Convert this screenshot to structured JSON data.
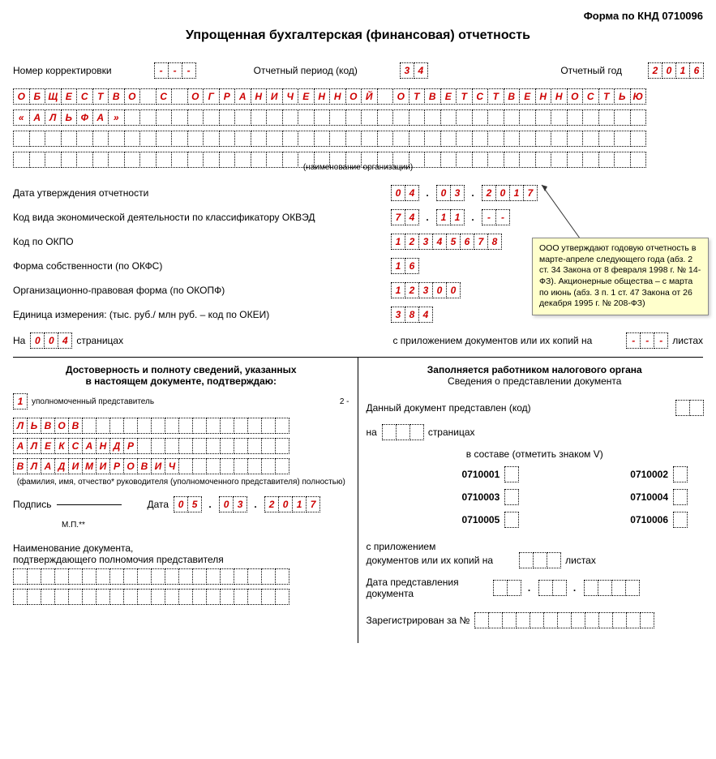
{
  "form_code": "Форма по КНД 0710096",
  "title": "Упрощенная бухгалтерская (финансовая) отчетность",
  "correction_label": "Номер корректировки",
  "correction_value": [
    "-",
    "-",
    "-"
  ],
  "period_label": "Отчетный период (код)",
  "period_value": [
    "3",
    "4"
  ],
  "year_label": "Отчетный год",
  "year_value": [
    "2",
    "0",
    "1",
    "6"
  ],
  "org_name_rows": [
    [
      "О",
      "Б",
      "Щ",
      "Е",
      "С",
      "Т",
      "В",
      "О",
      "",
      "С",
      "",
      "О",
      "Г",
      "Р",
      "А",
      "Н",
      "И",
      "Ч",
      "Е",
      "Н",
      "Н",
      "О",
      "Й",
      "",
      "О",
      "Т",
      "В",
      "Е",
      "Т",
      "С",
      "Т",
      "В",
      "Е",
      "Н",
      "Н",
      "О",
      "С",
      "Т",
      "Ь",
      "Ю"
    ],
    [
      "«",
      "А",
      "Л",
      "Ь",
      "Ф",
      "А",
      "»",
      "",
      "",
      "",
      "",
      "",
      "",
      "",
      "",
      "",
      "",
      "",
      "",
      "",
      "",
      "",
      "",
      "",
      "",
      "",
      "",
      "",
      "",
      "",
      "",
      "",
      "",
      "",
      "",
      "",
      "",
      "",
      "",
      ""
    ],
    [
      "",
      "",
      "",
      "",
      "",
      "",
      "",
      "",
      "",
      "",
      "",
      "",
      "",
      "",
      "",
      "",
      "",
      "",
      "",
      "",
      "",
      "",
      "",
      "",
      "",
      "",
      "",
      "",
      "",
      "",
      "",
      "",
      "",
      "",
      "",
      "",
      "",
      "",
      "",
      ""
    ],
    [
      "",
      "",
      "",
      "",
      "",
      "",
      "",
      "",
      "",
      "",
      "",
      "",
      "",
      "",
      "",
      "",
      "",
      "",
      "",
      "",
      "",
      "",
      "",
      "",
      "",
      "",
      "",
      "",
      "",
      "",
      "",
      "",
      "",
      "",
      "",
      "",
      "",
      "",
      "",
      ""
    ]
  ],
  "org_caption": "(наименование организации)",
  "approval_date_label": "Дата утверждения отчетности",
  "approval_date": {
    "d": [
      "0",
      "4"
    ],
    "m": [
      "0",
      "3"
    ],
    "y": [
      "2",
      "0",
      "1",
      "7"
    ]
  },
  "okved_label": "Код вида экономической деятельности по классификатору ОКВЭД",
  "okved": {
    "a": [
      "7",
      "4"
    ],
    "b": [
      "1",
      "1"
    ],
    "c": [
      "-",
      "-"
    ]
  },
  "okpo_label": "Код по ОКПО",
  "okpo": [
    "1",
    "2",
    "3",
    "4",
    "5",
    "6",
    "7",
    "8"
  ],
  "okfs_label": "Форма собственности (по ОКФС)",
  "okfs": [
    "1",
    "6"
  ],
  "okopf_label": "Организационно-правовая форма (по ОКОПФ)",
  "okopf": [
    "1",
    "2",
    "3",
    "0",
    "0"
  ],
  "okei_label": "Единица измерения: (тыс. руб./ млн руб. – код по ОКЕИ)",
  "okei": [
    "3",
    "8",
    "4"
  ],
  "tooltip_text": "ООО утверждают годовую отчетность в марте-апреле следующего года (абз. 2 ст. 34 Закона от 8 февраля 1998 г. № 14-ФЗ). Акционерные общества – с марта по июнь (абз. 3 п. 1 ст. 47 Закона от 26 декабря 1995 г. № 208-ФЗ)",
  "pages_prefix": "На",
  "pages_value": [
    "0",
    "0",
    "4"
  ],
  "pages_suffix": "страницах",
  "attach_label": "с приложением документов или их копий на",
  "attach_value": [
    "-",
    "-",
    "-"
  ],
  "attach_suffix": "листах",
  "left_title1": "Достоверность и полноту сведений, указанных",
  "left_title2": "в настоящем документе, подтверждаю:",
  "rep_code": [
    "1"
  ],
  "rep_label": "уполномоченный представитель",
  "rep_label_num": "2 -",
  "name_rows": [
    [
      "Л",
      "Ь",
      "В",
      "О",
      "В",
      "",
      "",
      "",
      "",
      "",
      "",
      "",
      "",
      "",
      "",
      "",
      "",
      "",
      "",
      ""
    ],
    [
      "А",
      "Л",
      "Е",
      "К",
      "С",
      "А",
      "Н",
      "Д",
      "Р",
      "",
      "",
      "",
      "",
      "",
      "",
      "",
      "",
      "",
      "",
      ""
    ],
    [
      "В",
      "Л",
      "А",
      "Д",
      "И",
      "М",
      "И",
      "Р",
      "О",
      "В",
      "И",
      "Ч",
      "",
      "",
      "",
      "",
      "",
      "",
      "",
      ""
    ]
  ],
  "fio_caption": "(фамилия, имя, отчество* руководителя (уполномоченного представителя) полностью)",
  "sign_label": "Подпись",
  "mp_label": "М.П.**",
  "date_label": "Дата",
  "sign_date": {
    "d": [
      "0",
      "5"
    ],
    "m": [
      "0",
      "3"
    ],
    "y": [
      "2",
      "0",
      "1",
      "7"
    ]
  },
  "doc_name_label1": "Наименование документа,",
  "doc_name_label2": "подтверждающего полномочия представителя",
  "doc_name_rows": [
    [
      "",
      "",
      "",
      "",
      "",
      "",
      "",
      "",
      "",
      "",
      "",
      "",
      "",
      "",
      "",
      "",
      "",
      "",
      "",
      ""
    ],
    [
      "",
      "",
      "",
      "",
      "",
      "",
      "",
      "",
      "",
      "",
      "",
      "",
      "",
      "",
      "",
      "",
      "",
      "",
      "",
      ""
    ]
  ],
  "right_title": "Заполняется работником налогового органа",
  "right_subtitle": "Сведения о представлении документа",
  "doc_presented_label": "Данный документ представлен (код)",
  "doc_presented": [
    "",
    ""
  ],
  "on_label": "на",
  "pages2": [
    "",
    "",
    ""
  ],
  "pages2_suffix": "страницах",
  "includes_label": "в составе (отметить знаком V)",
  "codes": [
    [
      "0710001",
      ""
    ],
    [
      "0710002",
      ""
    ],
    [
      "0710003",
      ""
    ],
    [
      "0710004",
      ""
    ],
    [
      "0710005",
      ""
    ],
    [
      "0710006",
      ""
    ]
  ],
  "with_attach_label": "с приложением",
  "docs_copies_label": "документов или их копий на",
  "docs_copies": [
    "",
    "",
    ""
  ],
  "sheets_label": "листах",
  "submit_date_label": "Дата представления документа",
  "submit_date": {
    "d": [
      "",
      ""
    ],
    "m": [
      "",
      ""
    ],
    "y": [
      "",
      "",
      "",
      ""
    ]
  },
  "reg_label": "Зарегистрирован за №",
  "reg_value": [
    "",
    "",
    "",
    "",
    "",
    "",
    "",
    "",
    "",
    "",
    "",
    "",
    ""
  ]
}
